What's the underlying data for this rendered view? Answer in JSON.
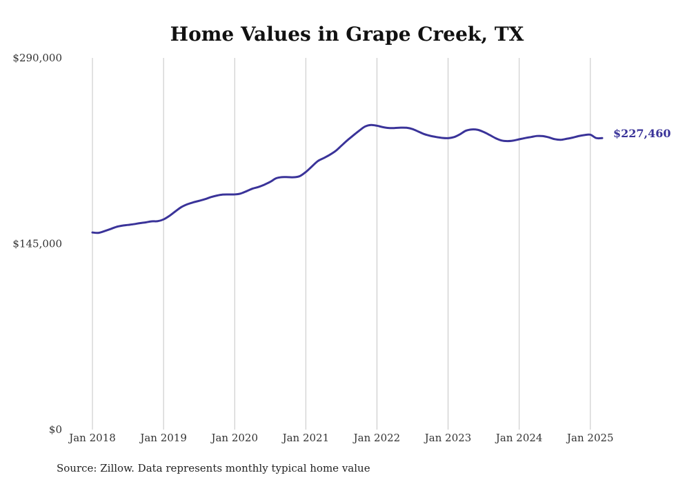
{
  "chart_data": {
    "type": "line",
    "title": "Home Values in Grape Creek, TX",
    "source": "Source: Zillow. Data represents monthly typical home value",
    "ylim": [
      0,
      290000
    ],
    "y_ticks": [
      {
        "value": 0,
        "label": "$0"
      },
      {
        "value": 145000,
        "label": "$145,000"
      },
      {
        "value": 290000,
        "label": "$290,000"
      }
    ],
    "x_range": [
      "2018-01",
      "2025-03"
    ],
    "x_ticks": [
      {
        "date": "2018-01",
        "label": "Jan 2018"
      },
      {
        "date": "2019-01",
        "label": "Jan 2019"
      },
      {
        "date": "2020-01",
        "label": "Jan 2020"
      },
      {
        "date": "2021-01",
        "label": "Jan 2021"
      },
      {
        "date": "2022-01",
        "label": "Jan 2022"
      },
      {
        "date": "2023-01",
        "label": "Jan 2023"
      },
      {
        "date": "2024-01",
        "label": "Jan 2024"
      },
      {
        "date": "2025-01",
        "label": "Jan 2025"
      }
    ],
    "grid": {
      "vertical": true,
      "horizontal": false
    },
    "line_color": "#3a3399",
    "end_label": "$227,460",
    "series": [
      {
        "x": [
          "2018-01",
          "2018-02",
          "2018-03",
          "2018-04",
          "2018-05",
          "2018-06",
          "2018-07",
          "2018-08",
          "2018-09",
          "2018-10",
          "2018-11",
          "2018-12",
          "2019-01",
          "2019-02",
          "2019-03",
          "2019-04",
          "2019-05",
          "2019-06",
          "2019-07",
          "2019-08",
          "2019-09",
          "2019-10",
          "2019-11",
          "2019-12",
          "2020-01",
          "2020-02",
          "2020-03",
          "2020-04",
          "2020-05",
          "2020-06",
          "2020-07",
          "2020-08",
          "2020-09",
          "2020-10",
          "2020-11",
          "2020-12",
          "2021-01",
          "2021-02",
          "2021-03",
          "2021-04",
          "2021-05",
          "2021-06",
          "2021-07",
          "2021-08",
          "2021-09",
          "2021-10",
          "2021-11",
          "2021-12",
          "2022-01",
          "2022-02",
          "2022-03",
          "2022-04",
          "2022-05",
          "2022-06",
          "2022-07",
          "2022-08",
          "2022-09",
          "2022-10",
          "2022-11",
          "2022-12",
          "2023-01",
          "2023-02",
          "2023-03",
          "2023-04",
          "2023-05",
          "2023-06",
          "2023-07",
          "2023-08",
          "2023-09",
          "2023-10",
          "2023-11",
          "2023-12",
          "2024-01",
          "2024-02",
          "2024-03",
          "2024-04",
          "2024-05",
          "2024-06",
          "2024-07",
          "2024-08",
          "2024-09",
          "2024-10",
          "2024-11",
          "2024-12",
          "2025-01",
          "2025-02",
          "2025-03"
        ],
        "values": [
          153800,
          153500,
          154800,
          156400,
          158100,
          159100,
          159700,
          160300,
          161100,
          161700,
          162500,
          162600,
          164000,
          166800,
          170300,
          173600,
          175800,
          177300,
          178500,
          179800,
          181400,
          182600,
          183400,
          183500,
          183500,
          184200,
          186000,
          188000,
          189300,
          191100,
          193300,
          196100,
          197000,
          197000,
          196900,
          197800,
          201000,
          205200,
          209400,
          211800,
          214300,
          217300,
          221500,
          225700,
          229500,
          233200,
          236500,
          237700,
          237100,
          236000,
          235300,
          235300,
          235600,
          235500,
          234500,
          232500,
          230500,
          229200,
          228300,
          227600,
          227400,
          228200,
          230400,
          233200,
          234200,
          233900,
          232200,
          229900,
          227400,
          225600,
          225100,
          225500,
          226500,
          227500,
          228300,
          229100,
          229000,
          228000,
          226600,
          226100,
          226900,
          227800,
          229000,
          229800,
          230100,
          227460,
          227460
        ]
      }
    ]
  }
}
